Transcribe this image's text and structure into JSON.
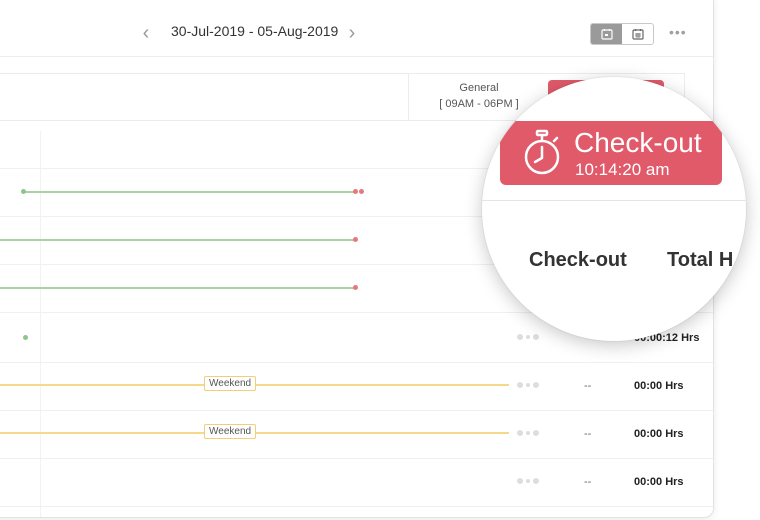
{
  "header": {
    "date_range": "30-Jul-2019  -  05-Aug-2019",
    "prev_icon": "chevron-left-icon",
    "next_icon": "chevron-right-icon",
    "more_label": "•••"
  },
  "shift": {
    "name": "General",
    "time": "[ 09AM - 06PM ]"
  },
  "rows": [
    {
      "label": "",
      "total": ""
    },
    {
      "label": "",
      "total": ""
    },
    {
      "label": "",
      "total": ""
    },
    {
      "label": "",
      "total": "00:00:12 Hrs"
    },
    {
      "label": "Weekend",
      "checkout": "--",
      "total": "00:00 Hrs"
    },
    {
      "label": "Weekend",
      "checkout": "--",
      "total": "00:00 Hrs"
    },
    {
      "label": "",
      "checkout": "--",
      "total": "00:00 Hrs"
    }
  ],
  "magnifier": {
    "button_title": "Check-out",
    "button_time": "10:14:20 am",
    "col_checkout": "Check-out",
    "col_total": "Total H"
  },
  "colors": {
    "accent_red": "#e05a6a",
    "present_green": "#a9d3a6",
    "weekend_yellow": "#f6d88a"
  }
}
